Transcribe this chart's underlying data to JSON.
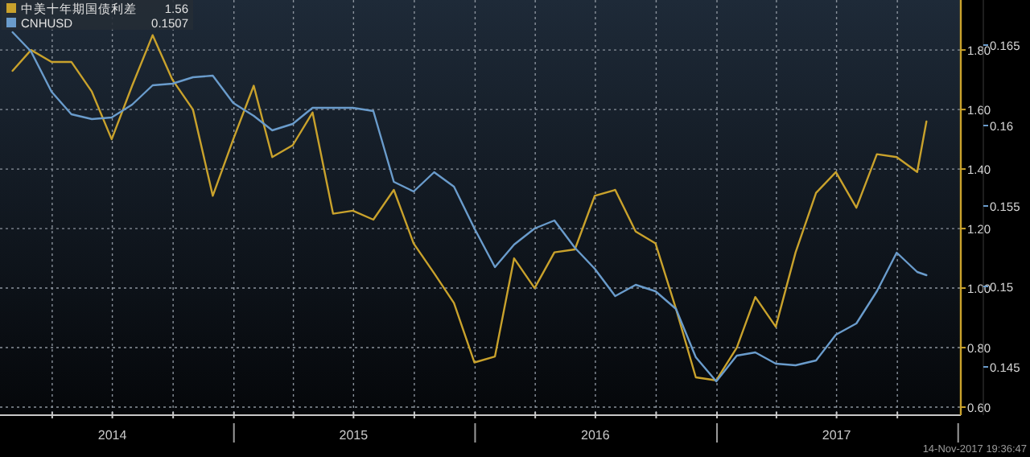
{
  "chart_data": {
    "type": "line",
    "x": [
      "2014-01-31",
      "2014-02-28",
      "2014-03-31",
      "2014-04-30",
      "2014-05-31",
      "2014-06-30",
      "2014-07-31",
      "2014-08-31",
      "2014-09-30",
      "2014-10-31",
      "2014-11-30",
      "2014-12-31",
      "2015-01-31",
      "2015-02-28",
      "2015-03-31",
      "2015-04-30",
      "2015-05-31",
      "2015-06-30",
      "2015-07-31",
      "2015-08-31",
      "2015-09-30",
      "2015-10-31",
      "2015-11-30",
      "2015-12-31",
      "2016-01-31",
      "2016-02-29",
      "2016-03-31",
      "2016-04-30",
      "2016-05-31",
      "2016-06-30",
      "2016-07-31",
      "2016-08-31",
      "2016-09-30",
      "2016-10-31",
      "2016-11-30",
      "2016-12-31",
      "2017-01-31",
      "2017-02-28",
      "2017-03-31",
      "2017-04-30",
      "2017-05-31",
      "2017-06-30",
      "2017-07-31",
      "2017-08-31",
      "2017-09-30",
      "2017-10-31",
      "2017-11-14"
    ],
    "series": [
      {
        "name": "中美十年期国债利差",
        "color": "#c9a22c",
        "values": [
          1.73,
          1.8,
          1.76,
          1.76,
          1.66,
          1.5,
          1.68,
          1.85,
          1.7,
          1.6,
          1.31,
          1.5,
          1.68,
          1.44,
          1.48,
          1.59,
          1.25,
          1.26,
          1.23,
          1.33,
          1.15,
          1.05,
          0.95,
          0.75,
          0.77,
          1.1,
          1.0,
          1.12,
          1.13,
          1.31,
          1.33,
          1.19,
          1.15,
          0.93,
          0.7,
          0.69,
          0.8,
          0.97,
          0.87,
          1.12,
          1.32,
          1.39,
          1.27,
          1.45,
          1.44,
          1.39,
          1.56
        ]
      },
      {
        "name": "CNHUSD",
        "color": "#6a9ccc",
        "axis": "y2",
        "values": [
          0.1658,
          0.1646,
          0.1621,
          0.1607,
          0.1604,
          0.1605,
          0.1613,
          0.1625,
          0.1626,
          0.163,
          0.1631,
          0.1614,
          0.1606,
          0.1597,
          0.1601,
          0.1611,
          0.1611,
          0.1611,
          0.1609,
          0.1565,
          0.1559,
          0.1571,
          0.1562,
          0.1536,
          0.1512,
          0.1526,
          0.1536,
          0.1541,
          0.1524,
          0.1511,
          0.1494,
          0.1501,
          0.1497,
          0.1486,
          0.1456,
          0.1441,
          0.1457,
          0.1459,
          0.1452,
          0.1451,
          0.1454,
          0.147,
          0.1477,
          0.1497,
          0.1521,
          0.1509,
          0.1507
        ]
      }
    ],
    "xlim": [
      "2014-01-12",
      "2018-01-05"
    ],
    "xticks": [
      {
        "value": "2014-04-01",
        "label": null
      },
      {
        "value": "2014-07-01",
        "label": "2014"
      },
      {
        "value": "2014-10-01",
        "label": null
      },
      {
        "value": "2015-01-01",
        "label": null
      },
      {
        "value": "2015-04-01",
        "label": null
      },
      {
        "value": "2015-07-01",
        "label": "2015"
      },
      {
        "value": "2015-10-01",
        "label": null
      },
      {
        "value": "2016-01-01",
        "label": null
      },
      {
        "value": "2016-04-01",
        "label": null
      },
      {
        "value": "2016-07-01",
        "label": "2016"
      },
      {
        "value": "2016-10-01",
        "label": null
      },
      {
        "value": "2017-01-01",
        "label": null
      },
      {
        "value": "2017-04-01",
        "label": null
      },
      {
        "value": "2017-07-01",
        "label": "2017"
      },
      {
        "value": "2017-10-01",
        "label": null
      }
    ],
    "ylim": [
      0.573,
      1.968
    ],
    "yticks": [
      {
        "value": 0.6,
        "label": "0.60"
      },
      {
        "value": 0.8,
        "label": "0.80"
      },
      {
        "value": 1.0,
        "label": "1.00"
      },
      {
        "value": 1.2,
        "label": "1.20"
      },
      {
        "value": 1.4,
        "label": "1.40"
      },
      {
        "value": 1.6,
        "label": "1.60"
      },
      {
        "value": 1.8,
        "label": "1.80"
      }
    ],
    "y2lim": [
      0.142,
      0.1678
    ],
    "y2ticks": [
      0.145,
      0.15,
      0.155,
      0.16,
      0.165
    ],
    "grid": true,
    "legend": "top left",
    "annotations": [
      "1.56",
      "0.1507",
      "14-Nov-2017 19:36:47"
    ]
  }
}
